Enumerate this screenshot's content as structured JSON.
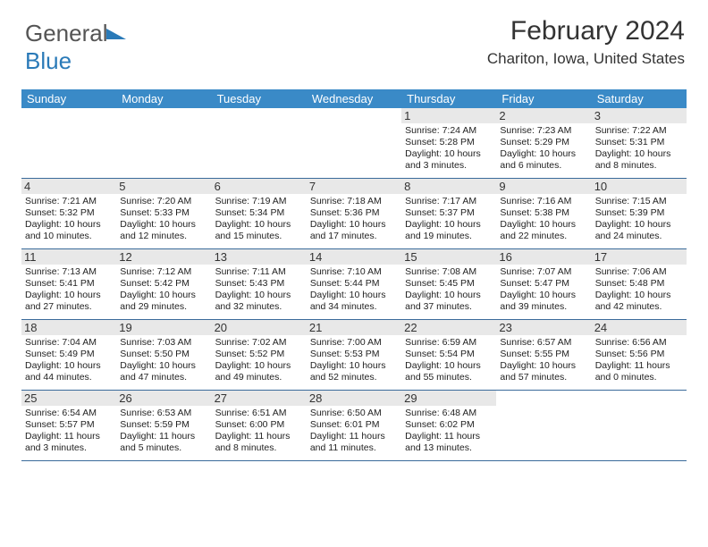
{
  "logo": {
    "text_a": "General",
    "text_b": "Blue"
  },
  "title": "February 2024",
  "location": "Chariton, Iowa, United States",
  "colors": {
    "header_bg": "#3a8ac7",
    "header_text": "#ffffff",
    "row_border": "#3a6a9a",
    "daynum_bg": "#e8e8e8",
    "text": "#333333",
    "logo_gray": "#555555",
    "logo_blue": "#2a7ab8",
    "background": "#ffffff"
  },
  "day_headers": [
    "Sunday",
    "Monday",
    "Tuesday",
    "Wednesday",
    "Thursday",
    "Friday",
    "Saturday"
  ],
  "weeks": [
    [
      {
        "n": "",
        "sr": "",
        "ss": "",
        "dl": ""
      },
      {
        "n": "",
        "sr": "",
        "ss": "",
        "dl": ""
      },
      {
        "n": "",
        "sr": "",
        "ss": "",
        "dl": ""
      },
      {
        "n": "",
        "sr": "",
        "ss": "",
        "dl": ""
      },
      {
        "n": "1",
        "sr": "Sunrise: 7:24 AM",
        "ss": "Sunset: 5:28 PM",
        "dl": "Daylight: 10 hours and 3 minutes."
      },
      {
        "n": "2",
        "sr": "Sunrise: 7:23 AM",
        "ss": "Sunset: 5:29 PM",
        "dl": "Daylight: 10 hours and 6 minutes."
      },
      {
        "n": "3",
        "sr": "Sunrise: 7:22 AM",
        "ss": "Sunset: 5:31 PM",
        "dl": "Daylight: 10 hours and 8 minutes."
      }
    ],
    [
      {
        "n": "4",
        "sr": "Sunrise: 7:21 AM",
        "ss": "Sunset: 5:32 PM",
        "dl": "Daylight: 10 hours and 10 minutes."
      },
      {
        "n": "5",
        "sr": "Sunrise: 7:20 AM",
        "ss": "Sunset: 5:33 PM",
        "dl": "Daylight: 10 hours and 12 minutes."
      },
      {
        "n": "6",
        "sr": "Sunrise: 7:19 AM",
        "ss": "Sunset: 5:34 PM",
        "dl": "Daylight: 10 hours and 15 minutes."
      },
      {
        "n": "7",
        "sr": "Sunrise: 7:18 AM",
        "ss": "Sunset: 5:36 PM",
        "dl": "Daylight: 10 hours and 17 minutes."
      },
      {
        "n": "8",
        "sr": "Sunrise: 7:17 AM",
        "ss": "Sunset: 5:37 PM",
        "dl": "Daylight: 10 hours and 19 minutes."
      },
      {
        "n": "9",
        "sr": "Sunrise: 7:16 AM",
        "ss": "Sunset: 5:38 PM",
        "dl": "Daylight: 10 hours and 22 minutes."
      },
      {
        "n": "10",
        "sr": "Sunrise: 7:15 AM",
        "ss": "Sunset: 5:39 PM",
        "dl": "Daylight: 10 hours and 24 minutes."
      }
    ],
    [
      {
        "n": "11",
        "sr": "Sunrise: 7:13 AM",
        "ss": "Sunset: 5:41 PM",
        "dl": "Daylight: 10 hours and 27 minutes."
      },
      {
        "n": "12",
        "sr": "Sunrise: 7:12 AM",
        "ss": "Sunset: 5:42 PM",
        "dl": "Daylight: 10 hours and 29 minutes."
      },
      {
        "n": "13",
        "sr": "Sunrise: 7:11 AM",
        "ss": "Sunset: 5:43 PM",
        "dl": "Daylight: 10 hours and 32 minutes."
      },
      {
        "n": "14",
        "sr": "Sunrise: 7:10 AM",
        "ss": "Sunset: 5:44 PM",
        "dl": "Daylight: 10 hours and 34 minutes."
      },
      {
        "n": "15",
        "sr": "Sunrise: 7:08 AM",
        "ss": "Sunset: 5:45 PM",
        "dl": "Daylight: 10 hours and 37 minutes."
      },
      {
        "n": "16",
        "sr": "Sunrise: 7:07 AM",
        "ss": "Sunset: 5:47 PM",
        "dl": "Daylight: 10 hours and 39 minutes."
      },
      {
        "n": "17",
        "sr": "Sunrise: 7:06 AM",
        "ss": "Sunset: 5:48 PM",
        "dl": "Daylight: 10 hours and 42 minutes."
      }
    ],
    [
      {
        "n": "18",
        "sr": "Sunrise: 7:04 AM",
        "ss": "Sunset: 5:49 PM",
        "dl": "Daylight: 10 hours and 44 minutes."
      },
      {
        "n": "19",
        "sr": "Sunrise: 7:03 AM",
        "ss": "Sunset: 5:50 PM",
        "dl": "Daylight: 10 hours and 47 minutes."
      },
      {
        "n": "20",
        "sr": "Sunrise: 7:02 AM",
        "ss": "Sunset: 5:52 PM",
        "dl": "Daylight: 10 hours and 49 minutes."
      },
      {
        "n": "21",
        "sr": "Sunrise: 7:00 AM",
        "ss": "Sunset: 5:53 PM",
        "dl": "Daylight: 10 hours and 52 minutes."
      },
      {
        "n": "22",
        "sr": "Sunrise: 6:59 AM",
        "ss": "Sunset: 5:54 PM",
        "dl": "Daylight: 10 hours and 55 minutes."
      },
      {
        "n": "23",
        "sr": "Sunrise: 6:57 AM",
        "ss": "Sunset: 5:55 PM",
        "dl": "Daylight: 10 hours and 57 minutes."
      },
      {
        "n": "24",
        "sr": "Sunrise: 6:56 AM",
        "ss": "Sunset: 5:56 PM",
        "dl": "Daylight: 11 hours and 0 minutes."
      }
    ],
    [
      {
        "n": "25",
        "sr": "Sunrise: 6:54 AM",
        "ss": "Sunset: 5:57 PM",
        "dl": "Daylight: 11 hours and 3 minutes."
      },
      {
        "n": "26",
        "sr": "Sunrise: 6:53 AM",
        "ss": "Sunset: 5:59 PM",
        "dl": "Daylight: 11 hours and 5 minutes."
      },
      {
        "n": "27",
        "sr": "Sunrise: 6:51 AM",
        "ss": "Sunset: 6:00 PM",
        "dl": "Daylight: 11 hours and 8 minutes."
      },
      {
        "n": "28",
        "sr": "Sunrise: 6:50 AM",
        "ss": "Sunset: 6:01 PM",
        "dl": "Daylight: 11 hours and 11 minutes."
      },
      {
        "n": "29",
        "sr": "Sunrise: 6:48 AM",
        "ss": "Sunset: 6:02 PM",
        "dl": "Daylight: 11 hours and 13 minutes."
      },
      {
        "n": "",
        "sr": "",
        "ss": "",
        "dl": ""
      },
      {
        "n": "",
        "sr": "",
        "ss": "",
        "dl": ""
      }
    ]
  ]
}
